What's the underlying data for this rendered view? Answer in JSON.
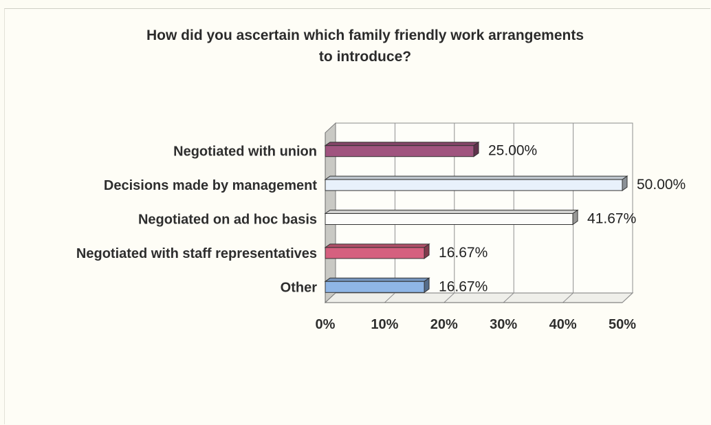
{
  "chart_data": {
    "type": "bar",
    "orientation": "horizontal",
    "title_lines": [
      "How did you ascertain which family friendly work arrangements",
      "to introduce?"
    ],
    "categories": [
      "Negotiated with union",
      "Decisions made by management",
      "Negotiated on ad hoc basis",
      "Negotiated with staff representatives",
      "Other"
    ],
    "values": [
      25.0,
      50.0,
      41.67,
      16.67,
      16.67
    ],
    "data_labels": [
      "25.00%",
      "50.00%",
      "41.67%",
      "16.67%",
      "16.67%"
    ],
    "bar_colors": [
      "#a0547f",
      "#e8f1fb",
      "#fdfdfb",
      "#d5607f",
      "#8fb6e6"
    ],
    "xlim": [
      0,
      50
    ],
    "xticks": [
      0,
      10,
      20,
      30,
      40,
      50
    ],
    "xtick_labels": [
      "0%",
      "10%",
      "20%",
      "30%",
      "40%",
      "50%"
    ],
    "grid": true,
    "legend": "none",
    "style": "3d"
  }
}
